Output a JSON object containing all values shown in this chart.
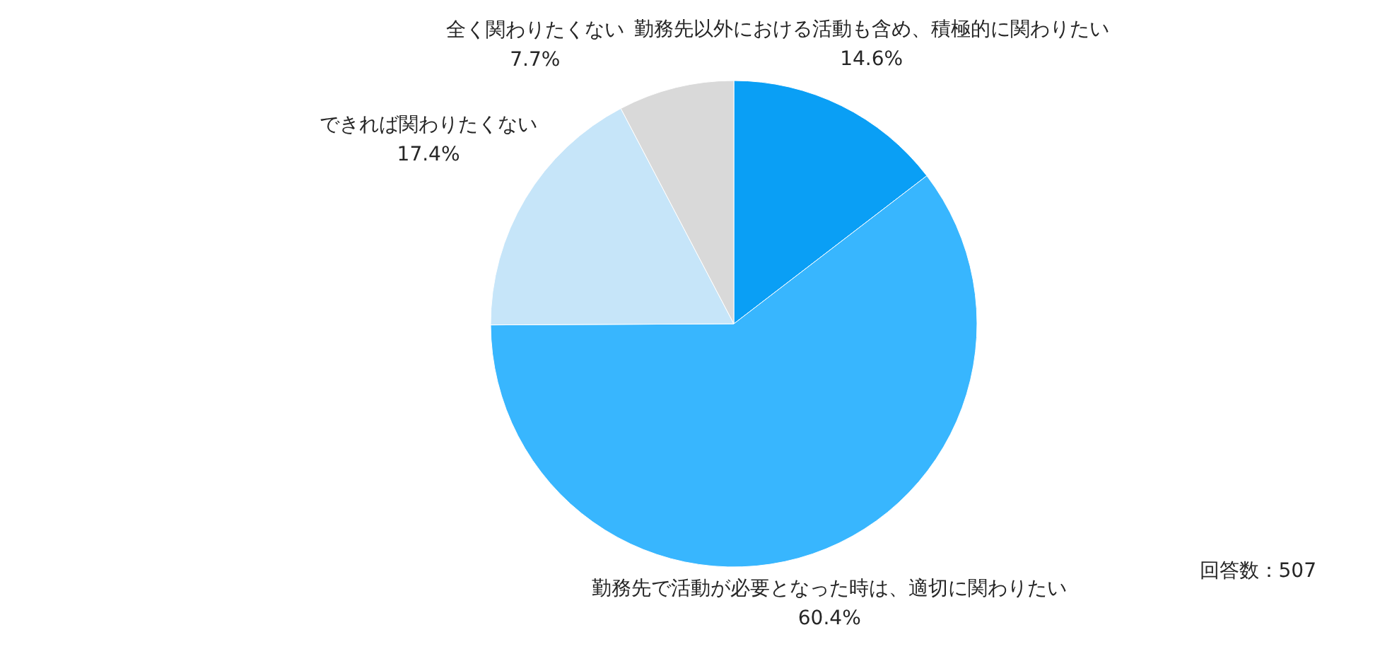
{
  "chart_data": {
    "type": "pie",
    "categories": [
      "勤務先以外における活動も含め、積極的に関わりたい",
      "勤務先で活動が必要となった時は、適切に関わりたい",
      "できれば関わりたくない",
      "全く関わりたくない"
    ],
    "values": [
      14.6,
      60.4,
      17.4,
      7.7
    ],
    "colors": [
      "#0a9ff5",
      "#38b6fe",
      "#c6e5f9",
      "#d9d9d9"
    ],
    "value_labels": [
      "14.6%",
      "60.4%",
      "17.4%",
      "7.7%"
    ],
    "annotations": [
      "回答数：507"
    ]
  }
}
